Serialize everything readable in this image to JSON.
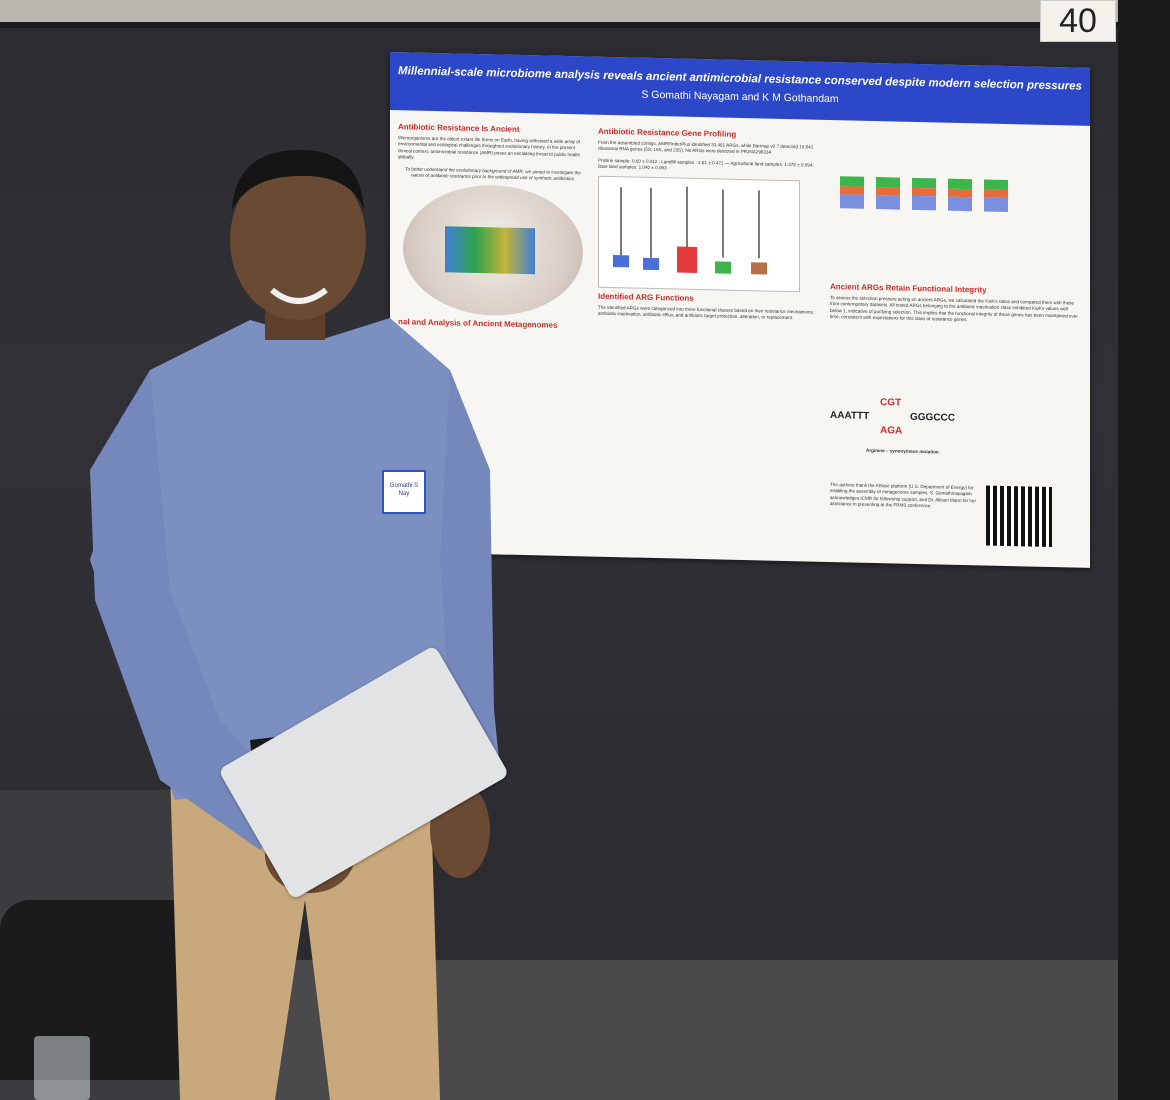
{
  "booth": {
    "number": "40"
  },
  "poster": {
    "title": "Millennial-scale microbiome analysis reveals ancient antimicrobial resistance conserved despite modern selection pressures",
    "authors": "S Gomathi Nayagam and K M Gothandam",
    "sections": {
      "resistance_heading": "Antibiotic Resistance Is Ancient",
      "resistance_text": "Microorganisms are the oldest extant life forms on Earth, having withstood a wide array of environmental and ecological challenges throughout evolutionary history. In the present clinical context, antimicrobial resistance (AMR) poses an escalating threat to public health globally.",
      "resistance_italic": "To better understand the evolutionary background of AMR, we aimed to investigate the nature of antibiotic resistance prior to the widespread use of synthetic antibiotics.",
      "metagenomes_heading": "nal and Analysis of Ancient Metagenomes",
      "profiling_heading": "Antibiotic Resistance Gene Profiling",
      "profiling_text": "From the assembled contigs, AMRFinderPlus identified 33,481 ARGs, while Barrnap v0.7 detected 16,541 ribosomal RNA genes (5S, 16S, and 23S). No ARGs were detected in PRJNA298334",
      "profiling_values": "Pristine sample: 0.00 ± 0.012 ; Landfill samples : 1.81 ± 0.471 — Agricultural land samples: 1.378 ± 0.094; Bare land samples: 1.040 ± 0.063",
      "functions_heading": "Identified ARG Functions",
      "functions_text": "The identified ARGs were categorized into three functional classes based on their resistance mechanisms: antibiotic inactivation, antibiotic efflux, and antibiotic target protection, alteration, or replacement.",
      "integrity_heading": "Ancient ARGs Retain Functional Integrity",
      "integrity_text": "To assess the selection pressure acting on ancient ARGs, we calculated the Ka/Ks ratios and compared them with those from contemporary datasets. All tested ARGs belonging to the antibiotic inactivation class exhibited Ka/Ks values well below 1, indicative of purifying selection. This implies that the functional integrity of these genes has been maintained over time, consistent with expectations for this class of resistance genes.",
      "ack_text": "The authors thank the KBase platform (U.S. Department of Energy) for enabling the assembly of metagenome samples. S. Gomathinayagam acknowledges ICMR for fellowship support, and Dr. Allison Mann for her assistance in presenting at the FRMS conference.",
      "seq_left": "AAATTT",
      "seq_top": "CGT",
      "seq_bottom": "AGA",
      "seq_right": "GGGCCC",
      "mutation_label": "Arginine – synonymous mutation"
    }
  },
  "badge": {
    "line1": "Gomathi S",
    "line2": "Nay"
  },
  "colors": {
    "banner": "#2c48c8",
    "accent": "#c9302c",
    "board": "#2c2c30"
  }
}
